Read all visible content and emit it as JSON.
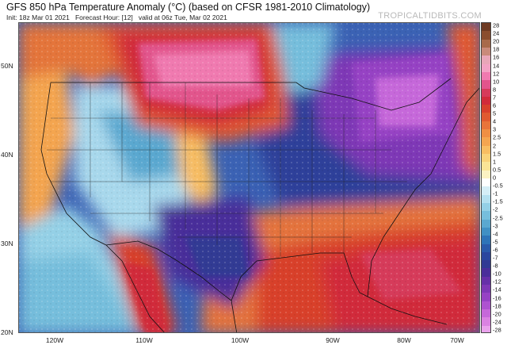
{
  "header": {
    "title": "GFS 850 hPa Temperature Anomaly (°C) (based on CFSR 1981-2010 Climatology)",
    "init": "Init: 18z Mar 01 2021",
    "forecast": "Forecast Hour: [12]",
    "valid": "valid at 06z Tue, Mar 02 2021",
    "credit": "TROPICALTIDBITS.COM"
  },
  "map": {
    "lat_labels": [
      "50N",
      "40N",
      "30N",
      "20N"
    ],
    "lon_labels": [
      "120W",
      "110W",
      "100W",
      "90W",
      "80W",
      "70W"
    ]
  },
  "colorbar": {
    "labels": [
      "28",
      "24",
      "20",
      "18",
      "16",
      "14",
      "12",
      "10",
      "8",
      "7",
      "6",
      "5",
      "4",
      "3",
      "2.5",
      "2",
      "1.5",
      "1",
      "0.5",
      "0",
      "-0.5",
      "-1",
      "-1.5",
      "-2",
      "-2.5",
      "-3",
      "-4",
      "-5",
      "-6",
      "-7",
      "-8",
      "-10",
      "-12",
      "-14",
      "-16",
      "-18",
      "-20",
      "-24",
      "-28"
    ],
    "colors": [
      "#6e3a22",
      "#8a4d2e",
      "#a86a4a",
      "#c98a7a",
      "#e8a6b8",
      "#f2a2c4",
      "#f07ab0",
      "#e2548c",
      "#d63a5a",
      "#d12a3a",
      "#d8402c",
      "#e05a30",
      "#e8743a",
      "#ef8f44",
      "#f4a550",
      "#f8bd62",
      "#f9d27a",
      "#fae496",
      "#fbf2c2",
      "#ffffff",
      "#d5eef6",
      "#b4e0ef",
      "#94d0e6",
      "#76bedc",
      "#5aa8d0",
      "#4090c4",
      "#2e74b8",
      "#2a5aaa",
      "#2a469e",
      "#313a94",
      "#4a2e9a",
      "#6630a8",
      "#7e38b6",
      "#9642c4",
      "#ae52d0",
      "#c668da",
      "#da82e2",
      "#e9a2ec"
    ]
  }
}
